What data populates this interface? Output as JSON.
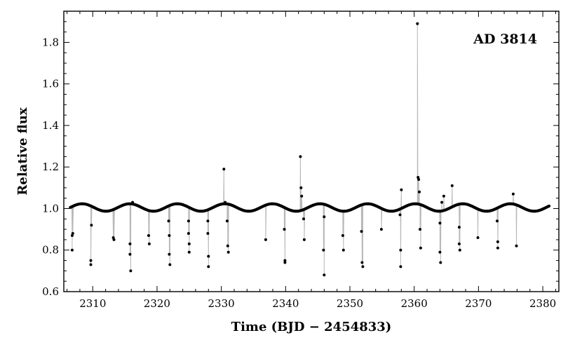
{
  "chart_data": {
    "type": "scatter",
    "title": "",
    "annotation": "AD 3814",
    "xlabel": "Time (BJD − 2454833)",
    "ylabel": "Relative flux",
    "xlim": [
      2305.5,
      2382.5
    ],
    "ylim": [
      0.6,
      1.95
    ],
    "xticks": [
      2310,
      2320,
      2330,
      2340,
      2350,
      2360,
      2370,
      2380
    ],
    "yticks": [
      0.6,
      0.8,
      1.0,
      1.2,
      1.4,
      1.6,
      1.8
    ],
    "x_minor_step": 2,
    "y_minor_step": 0.05,
    "grid": false,
    "legend": "none",
    "baseline": {
      "x_start": 2306.5,
      "x_end": 2381.0,
      "step": 0.08,
      "mean": 1.005,
      "amplitude": 0.018,
      "period": 7.4
    },
    "series": [
      {
        "x": [
          2306.8,
          2306.8,
          2306.9,
          2309.7,
          2309.7,
          2309.8,
          2313.2,
          2313.3,
          2315.8,
          2315.8,
          2315.9,
          2316.2,
          2318.7,
          2318.8,
          2321.8,
          2321.9,
          2321.9,
          2322.0,
          2324.9,
          2324.9,
          2325.0,
          2325.0,
          2327.9,
          2327.9,
          2328.0,
          2328.0,
          2330.4,
          2330.6,
          2330.9,
          2331.0,
          2331.1,
          2336.9,
          2339.8,
          2339.9,
          2339.9,
          2342.3,
          2342.4,
          2342.5,
          2342.8,
          2342.9,
          2345.9,
          2346.0,
          2346.0,
          2348.9,
          2349.0,
          2351.8,
          2351.9,
          2352.0,
          2354.9,
          2357.8,
          2357.9,
          2357.9,
          2358.0,
          2360.5,
          2360.6,
          2360.7,
          2360.8,
          2360.9,
          2361.0,
          2364.0,
          2364.0,
          2364.1,
          2364.3,
          2364.6,
          2365.9,
          2367.0,
          2367.0,
          2367.1,
          2369.9,
          2372.9,
          2373.0,
          2373.0,
          2375.4,
          2375.9
        ],
        "y": [
          0.87,
          0.8,
          0.88,
          0.75,
          0.73,
          0.92,
          0.86,
          0.85,
          0.83,
          0.78,
          0.7,
          1.03,
          0.87,
          0.83,
          0.94,
          0.87,
          0.78,
          0.73,
          0.94,
          0.88,
          0.83,
          0.79,
          0.94,
          0.88,
          0.77,
          0.72,
          1.19,
          1.03,
          0.94,
          0.82,
          0.79,
          0.85,
          0.9,
          0.75,
          0.74,
          1.25,
          1.1,
          1.06,
          0.95,
          0.85,
          0.8,
          0.96,
          0.68,
          0.87,
          0.8,
          0.89,
          0.74,
          0.72,
          0.9,
          0.97,
          0.8,
          0.72,
          1.09,
          1.89,
          1.15,
          1.14,
          1.08,
          0.9,
          0.81,
          0.93,
          0.79,
          0.74,
          1.03,
          1.06,
          1.11,
          0.91,
          0.83,
          0.8,
          0.86,
          0.94,
          0.84,
          0.81,
          1.07,
          0.82
        ]
      }
    ]
  }
}
